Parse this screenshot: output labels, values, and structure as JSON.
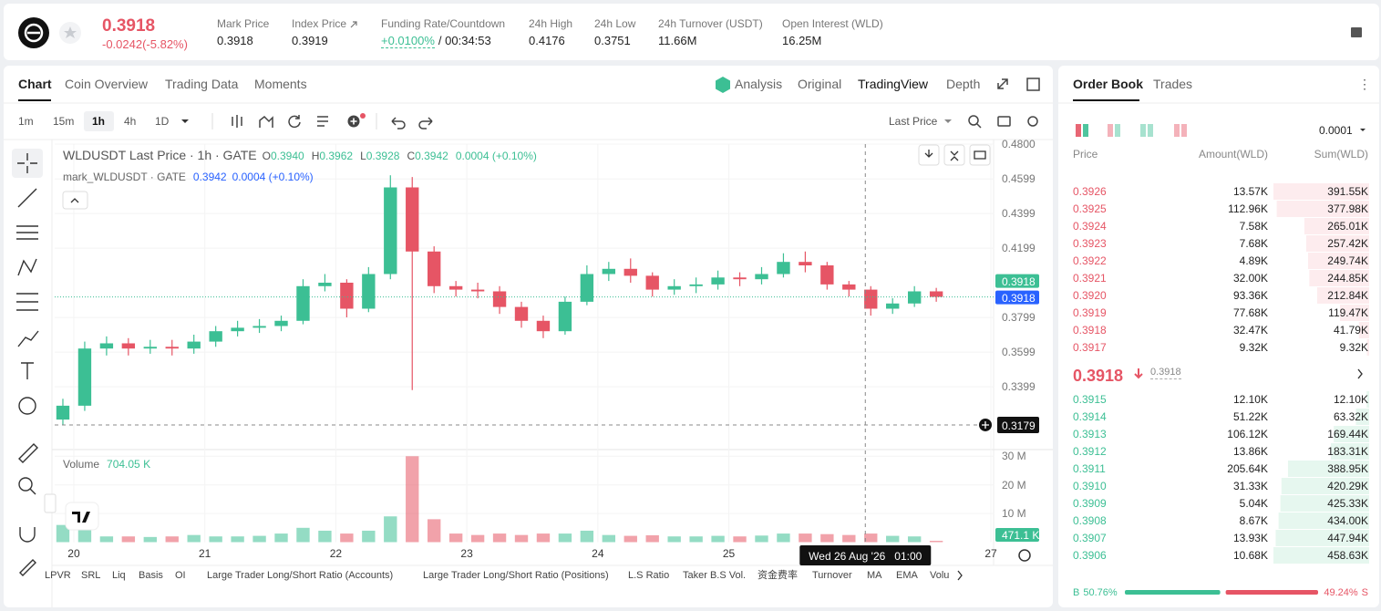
{
  "header": {
    "symbol_price": "0.3918",
    "change": "-0.0242(-5.82%)",
    "stats": [
      {
        "label": "Mark Price",
        "value": "0.3918"
      },
      {
        "label": "Index Price",
        "value": "0.3919"
      },
      {
        "label": "Funding Rate/Countdown",
        "value": "+0.0100%",
        "extra": "/ 00:34:53"
      },
      {
        "label": "24h High",
        "value": "0.4176"
      },
      {
        "label": "24h Low",
        "value": "0.3751"
      },
      {
        "label": "24h Turnover (USDT)",
        "value": "11.66M"
      },
      {
        "label": "Open Interest (WLD)",
        "value": "16.25M"
      }
    ]
  },
  "tabs": [
    "Chart",
    "Coin Overview",
    "Trading Data",
    "Moments"
  ],
  "views": [
    "Analysis",
    "Original",
    "TradingView",
    "Depth"
  ],
  "intervals": [
    "1m",
    "15m",
    "1h",
    "4h",
    "1D"
  ],
  "price_type": "Last Price",
  "indicators": [
    "LPVR",
    "SRL",
    "Liq",
    "Basis",
    "OI",
    "Large Trader Long/Short Ratio (Accounts)",
    "Large Trader Long/Short Ratio (Positions)",
    "L.S Ratio",
    "Taker B.S Vol.",
    "资金费率",
    "Turnover",
    "MA",
    "EMA",
    "Volu"
  ],
  "chart_data": {
    "type": "candlestick",
    "legend": {
      "title": "WLDUSDT Last Price · 1h · GATE",
      "o": "O",
      "o_value": "0.3940",
      "h": "H",
      "h_value": "0.3962",
      "l": "L",
      "l_value": "0.3928",
      "c": "C",
      "c_value": "0.3942",
      "change": "0.0004 (+0.10%)",
      "mark_title": "mark_WLDUSDT · GATE",
      "mark_value": "0.3942",
      "mark_change": "0.0004 (+0.10%)"
    },
    "x": [
      -2,
      2,
      6,
      10,
      14,
      18,
      22,
      26,
      30,
      34,
      38,
      42,
      46,
      50,
      54,
      58,
      62,
      66,
      70,
      74,
      78,
      82,
      86,
      90,
      94,
      98,
      102,
      106,
      110,
      114,
      118,
      122,
      126,
      130,
      134,
      138,
      142,
      146,
      150,
      154,
      158
    ],
    "open": [
      0.321,
      0.329,
      0.362,
      0.365,
      0.362,
      0.363,
      0.362,
      0.366,
      0.372,
      0.374,
      0.375,
      0.378,
      0.398,
      0.4,
      0.385,
      0.405,
      0.455,
      0.418,
      0.398,
      0.396,
      0.395,
      0.386,
      0.378,
      0.372,
      0.389,
      0.405,
      0.408,
      0.404,
      0.396,
      0.398,
      0.399,
      0.403,
      0.402,
      0.405,
      0.412,
      0.41,
      0.399,
      0.396,
      0.385,
      0.388,
      0.395
    ],
    "high": [
      0.333,
      0.366,
      0.369,
      0.368,
      0.367,
      0.367,
      0.37,
      0.375,
      0.378,
      0.379,
      0.381,
      0.402,
      0.405,
      0.402,
      0.409,
      0.462,
      0.461,
      0.421,
      0.401,
      0.4,
      0.398,
      0.389,
      0.381,
      0.392,
      0.41,
      0.412,
      0.414,
      0.406,
      0.402,
      0.403,
      0.407,
      0.406,
      0.409,
      0.417,
      0.418,
      0.412,
      0.401,
      0.398,
      0.391,
      0.398,
      0.397
    ],
    "low": [
      0.318,
      0.326,
      0.358,
      0.358,
      0.359,
      0.358,
      0.359,
      0.363,
      0.369,
      0.371,
      0.372,
      0.376,
      0.395,
      0.38,
      0.383,
      0.402,
      0.338,
      0.394,
      0.392,
      0.391,
      0.382,
      0.374,
      0.368,
      0.37,
      0.387,
      0.401,
      0.4,
      0.392,
      0.393,
      0.394,
      0.396,
      0.398,
      0.399,
      0.403,
      0.406,
      0.396,
      0.392,
      0.381,
      0.382,
      0.386,
      0.389
    ],
    "close": [
      0.329,
      0.362,
      0.365,
      0.362,
      0.363,
      0.362,
      0.366,
      0.372,
      0.374,
      0.375,
      0.378,
      0.398,
      0.4,
      0.385,
      0.405,
      0.455,
      0.418,
      0.398,
      0.396,
      0.395,
      0.386,
      0.378,
      0.372,
      0.389,
      0.405,
      0.408,
      0.404,
      0.396,
      0.398,
      0.399,
      0.403,
      0.402,
      0.405,
      0.412,
      0.41,
      0.399,
      0.396,
      0.385,
      0.388,
      0.395,
      0.3918
    ],
    "up_color": "#3cbf94",
    "down_color": "#e65565",
    "grid": true,
    "xlim": [
      -3.5,
      168.5
    ],
    "xticks": [
      {
        "value": 0,
        "label": "20"
      },
      {
        "value": 24,
        "label": "21"
      },
      {
        "value": 48,
        "label": "22"
      },
      {
        "value": 72,
        "label": "23"
      },
      {
        "value": 96,
        "label": "24"
      },
      {
        "value": 120,
        "label": "25"
      },
      {
        "value": 168,
        "label": "27"
      }
    ],
    "ylim": [
      0.3042,
      0.48
    ],
    "yticks": [
      {
        "value": 0.48,
        "label": "0.4800"
      },
      0.4599,
      0.4399,
      0.4199,
      0.3799,
      0.3599,
      0.3399
    ],
    "last_price": 0.3918,
    "last_price_label": "0.3918",
    "mark_price": 0.3918,
    "mark_price_label": "0.3918",
    "crosshair": {
      "x": 145,
      "y": 0.3179,
      "x_label": "Wed 26 Aug '26   01:00",
      "y_label": "0.3179"
    },
    "volume": {
      "title": "Volume",
      "title_value": "704.05 K",
      "values": [
        6,
        5,
        2,
        2,
        1.8,
        2,
        2.5,
        2,
        2,
        2.2,
        3,
        5,
        4,
        3,
        4,
        9,
        30,
        8,
        3,
        2.5,
        3,
        2.5,
        3,
        3,
        4,
        2.5,
        2.2,
        2.4,
        2,
        2,
        2.2,
        2,
        2.3,
        3,
        3,
        2.8,
        2.5,
        3,
        2.2,
        2,
        0.4711
      ],
      "ylim": [
        0,
        32
      ],
      "yticks": [
        {
          "value": 30,
          "label": "30 M"
        },
        {
          "value": 20,
          "label": "20 M"
        },
        {
          "value": 10,
          "label": "10 M"
        }
      ],
      "last_label": "471.1 K"
    }
  },
  "order_book": {
    "tabs": [
      "Order Book",
      "Trades"
    ],
    "precision": "0.0001",
    "headers": [
      "Price",
      "Amount(WLD)",
      "Sum(WLD)"
    ],
    "asks": {
      "prices": [
        "0.3926",
        "0.3925",
        "0.3924",
        "0.3923",
        "0.3922",
        "0.3921",
        "0.3920",
        "0.3919",
        "0.3918",
        "0.3917"
      ],
      "amounts": [
        "13.57K",
        "112.96K",
        "7.58K",
        "7.68K",
        "4.89K",
        "32.00K",
        "93.36K",
        "77.68K",
        "32.47K",
        "9.32K"
      ],
      "sums": [
        391.55,
        377.98,
        265.01,
        257.42,
        249.74,
        244.85,
        212.84,
        119.47,
        41.79,
        9.32
      ],
      "sum_labels": [
        "391.55K",
        "377.98K",
        "265.01K",
        "257.42K",
        "249.74K",
        "244.85K",
        "212.84K",
        "119.47K",
        "41.79K",
        "9.32K"
      ]
    },
    "bids": {
      "prices": [
        "0.3915",
        "0.3914",
        "0.3913",
        "0.3912",
        "0.3911",
        "0.3910",
        "0.3909",
        "0.3908",
        "0.3907",
        "0.3906"
      ],
      "amounts": [
        "12.10K",
        "51.22K",
        "106.12K",
        "13.86K",
        "205.64K",
        "31.33K",
        "5.04K",
        "8.67K",
        "13.93K",
        "10.68K"
      ],
      "sums": [
        12.1,
        63.32,
        169.44,
        183.31,
        388.95,
        420.29,
        425.33,
        434.0,
        447.94,
        458.63
      ],
      "sum_labels": [
        "12.10K",
        "63.32K",
        "169.44K",
        "183.31K",
        "388.95K",
        "420.29K",
        "425.33K",
        "434.00K",
        "447.94K",
        "458.63K"
      ]
    },
    "mid_price": "0.3918",
    "mark": "0.3918",
    "buy_label": "B",
    "buy_pct": 50.76,
    "buy_pct_label": "50.76%",
    "sell_pct": 49.24,
    "sell_pct_label": "49.24%",
    "sell_label": "S"
  }
}
